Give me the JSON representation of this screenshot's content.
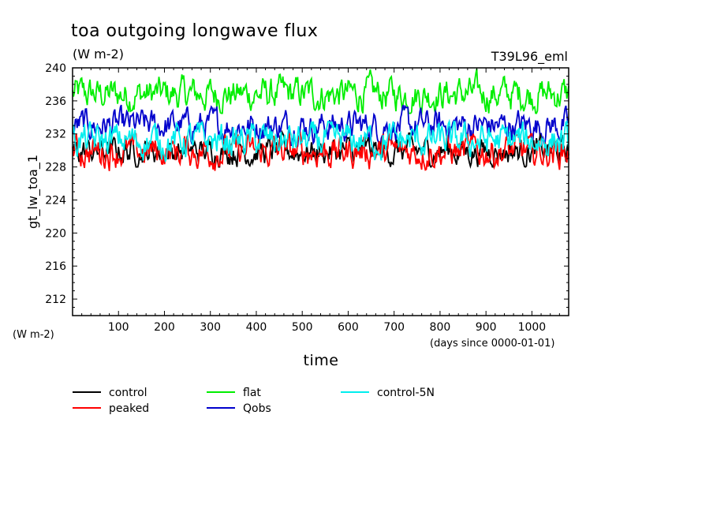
{
  "chart_data": {
    "type": "line",
    "title": "toa outgoing longwave flux",
    "units": "(W m-2)",
    "run_label": "T39L96_eml",
    "ylabel": "gt_lw_toa_1",
    "y_units": "(W m-2)",
    "xlabel": "time",
    "x_units": "(days since 0000-01-01)",
    "xlim": [
      0,
      1080
    ],
    "ylim": [
      210,
      240
    ],
    "x_ticks": [
      100,
      200,
      300,
      400,
      500,
      600,
      700,
      800,
      900,
      1000
    ],
    "y_ticks": [
      212,
      216,
      220,
      224,
      228,
      232,
      236,
      240
    ],
    "grid": false,
    "legend_position": "bottom",
    "series": [
      {
        "name": "control",
        "color": "#000000",
        "mean": 229.9,
        "range": [
          228.0,
          232.5
        ]
      },
      {
        "name": "peaked",
        "color": "#ff0000",
        "mean": 229.9,
        "range": [
          226.7,
          232.0
        ]
      },
      {
        "name": "flat",
        "color": "#00ee00",
        "mean": 236.8,
        "range": [
          234.5,
          240.0
        ]
      },
      {
        "name": "Qobs",
        "color": "#0000cc",
        "mean": 233.0,
        "range": [
          230.5,
          235.5
        ]
      },
      {
        "name": "control-5N",
        "color": "#00eeee",
        "mean": 231.2,
        "range": [
          228.0,
          233.5
        ]
      }
    ]
  }
}
